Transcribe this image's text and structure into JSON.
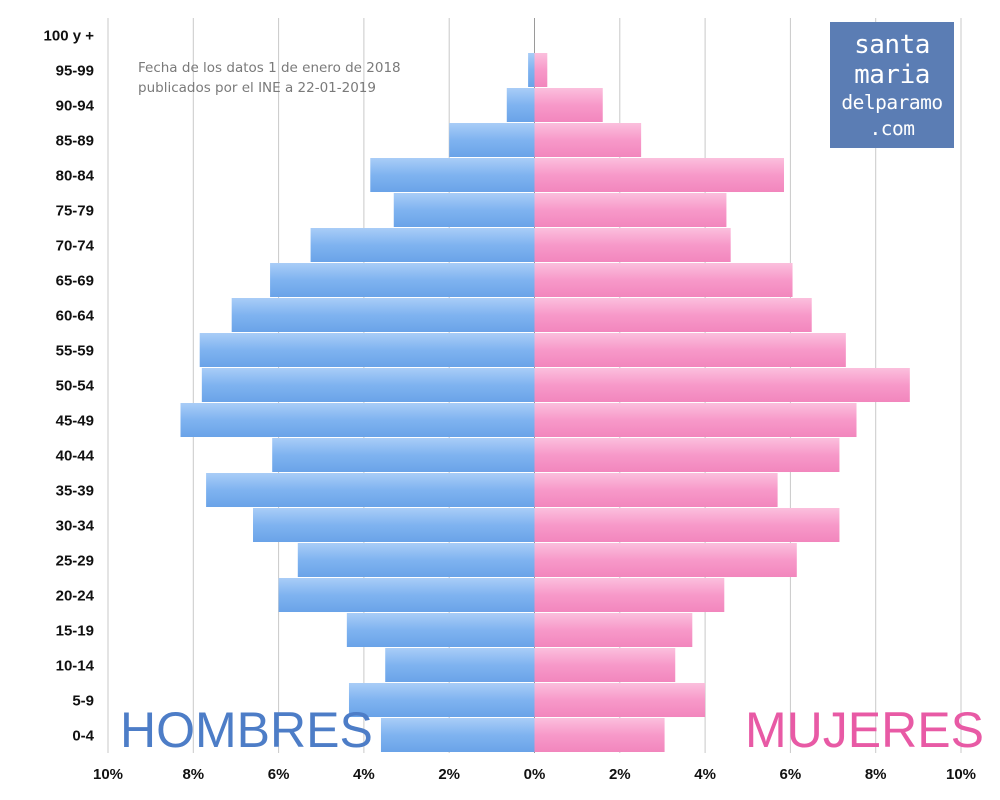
{
  "note": {
    "line1": "Fecha de los datos 1 de enero de 2018",
    "line2": "publicados por el INE a 22-01-2019"
  },
  "logo": {
    "line1": "santa",
    "line2": "maria",
    "line3": "delparamo",
    "line4": ".com"
  },
  "labels": {
    "men": "HOMBRES",
    "women": "MUJERES"
  },
  "colors": {
    "men_bar": "#7fb3f0",
    "women_bar": "#f799c9",
    "men_text": "#4d7dc7",
    "women_text": "#e85aa5",
    "logo_bg": "#5b7db4"
  },
  "chart_data": {
    "type": "bar",
    "orientation": "horizontal",
    "title": "",
    "categories": [
      "100 y +",
      "95-99",
      "90-94",
      "85-89",
      "80-84",
      "75-79",
      "70-74",
      "65-69",
      "60-64",
      "55-59",
      "50-54",
      "45-49",
      "40-44",
      "35-39",
      "30-34",
      "25-29",
      "20-24",
      "15-19",
      "10-14",
      "5-9",
      "0-4"
    ],
    "series": [
      {
        "name": "HOMBRES",
        "values": [
          0.0,
          0.15,
          0.65,
          2.0,
          3.85,
          3.3,
          5.25,
          6.2,
          7.1,
          7.85,
          7.8,
          8.3,
          6.15,
          7.7,
          6.6,
          5.55,
          6.0,
          4.4,
          3.5,
          4.35,
          3.6
        ]
      },
      {
        "name": "MUJERES",
        "values": [
          0.0,
          0.3,
          1.6,
          2.5,
          5.85,
          4.5,
          4.6,
          6.05,
          6.5,
          7.3,
          8.8,
          7.55,
          7.15,
          5.7,
          7.15,
          6.15,
          4.45,
          3.7,
          3.3,
          4.0,
          3.05
        ]
      }
    ],
    "xlim": [
      -10,
      10
    ],
    "x_ticks": [
      "10%",
      "8%",
      "6%",
      "4%",
      "2%",
      "0%",
      "2%",
      "4%",
      "6%",
      "8%",
      "10%"
    ],
    "grid": "vertical",
    "legend": "none"
  }
}
